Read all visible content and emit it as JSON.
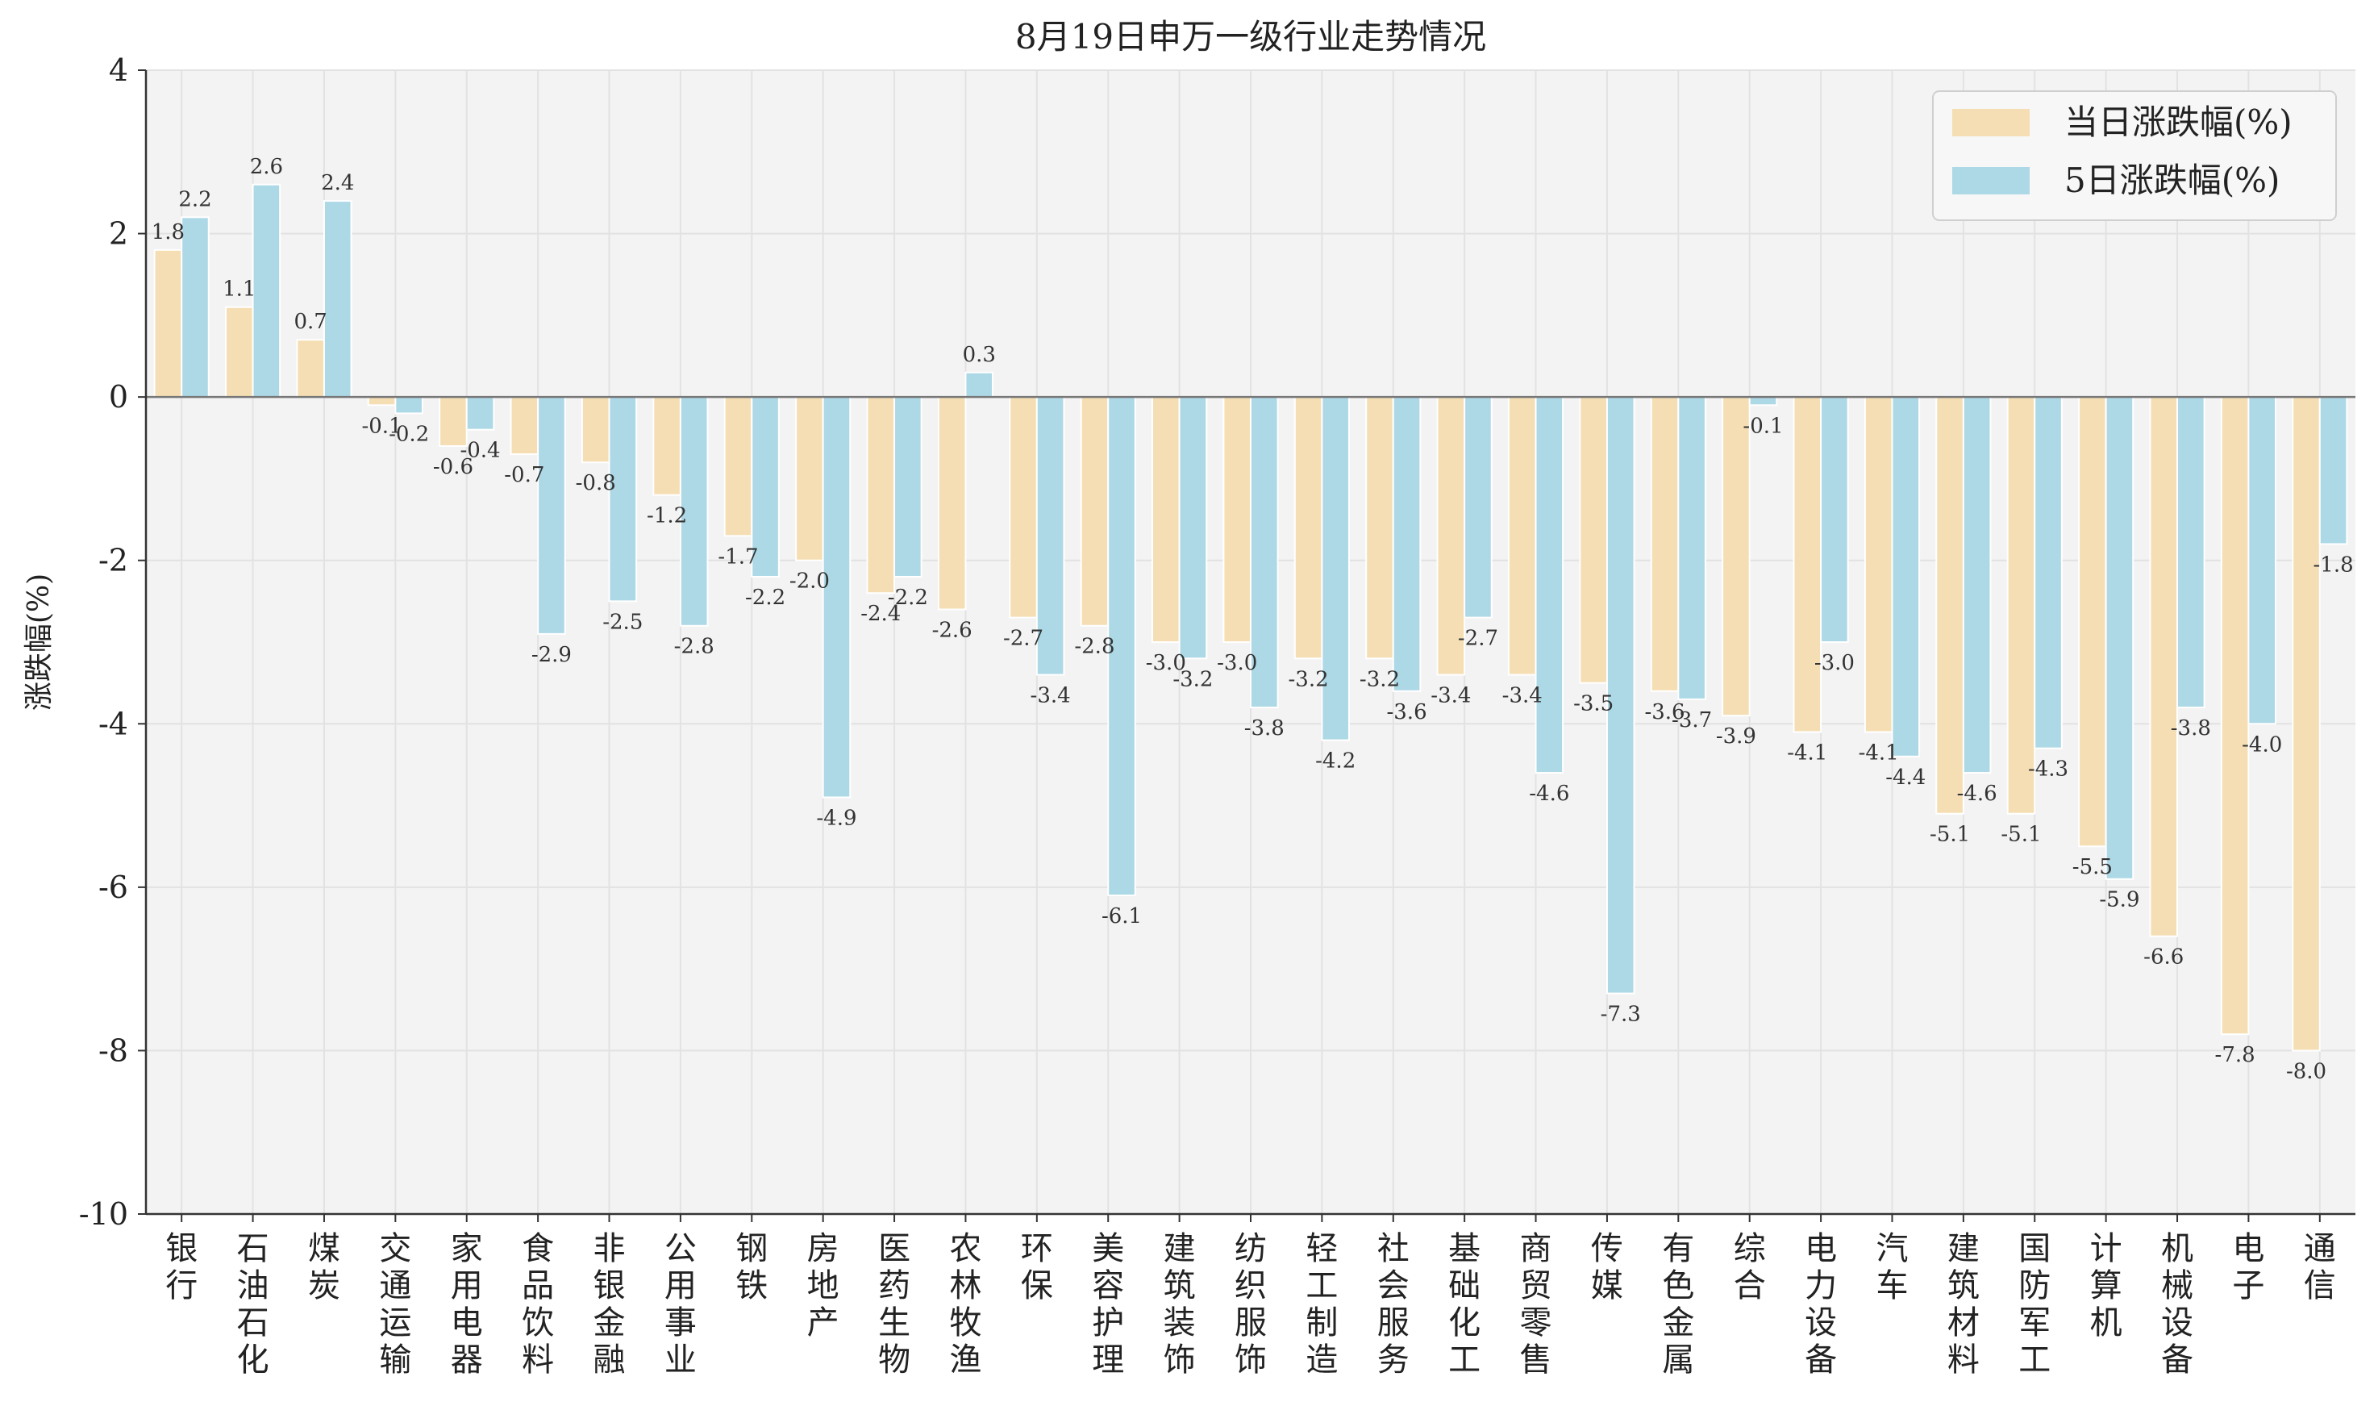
{
  "chart_data": {
    "type": "bar",
    "title": "8月19日申万一级行业走势情况",
    "ylabel": "涨跌幅(%)",
    "xlabel": "",
    "ylim": [
      -10,
      4
    ],
    "yticks": [
      4,
      2,
      0,
      -2,
      -4,
      -6,
      -8,
      -10
    ],
    "grid": true,
    "legend_position": "top-right",
    "categories": [
      "银行",
      "石油石化",
      "煤炭",
      "交通运输",
      "家用电器",
      "食品饮料",
      "非银金融",
      "公用事业",
      "钢铁",
      "房地产",
      "医药生物",
      "农林牧渔",
      "环保",
      "美容护理",
      "建筑装饰",
      "纺织服饰",
      "轻工制造",
      "社会服务",
      "基础化工",
      "商贸零售",
      "传媒",
      "有色金属",
      "综合",
      "电力设备",
      "汽车",
      "建筑材料",
      "国防军工",
      "计算机",
      "机械设备",
      "电子",
      "通信"
    ],
    "series": [
      {
        "name": "当日涨跌幅(%)",
        "color": "#f5deb3",
        "values": [
          1.8,
          1.1,
          0.7,
          -0.1,
          -0.6,
          -0.7,
          -0.8,
          -1.2,
          -1.7,
          -2.0,
          -2.4,
          -2.6,
          -2.7,
          -2.8,
          -3.0,
          -3.0,
          -3.2,
          -3.2,
          -3.4,
          -3.4,
          -3.5,
          -3.6,
          -3.9,
          -4.1,
          -4.1,
          -5.1,
          -5.1,
          -5.5,
          -6.6,
          -7.8,
          -8.0
        ]
      },
      {
        "name": "5日涨跌幅(%)",
        "color": "#add8e6",
        "values": [
          2.2,
          2.6,
          2.4,
          -0.2,
          -0.4,
          -2.9,
          -2.5,
          -2.8,
          -2.2,
          -4.9,
          -2.2,
          0.3,
          -3.4,
          -6.1,
          -3.2,
          -3.8,
          -4.2,
          -3.6,
          -2.7,
          -4.6,
          -7.3,
          -3.7,
          -0.1,
          -3.0,
          -4.4,
          -4.6,
          -4.3,
          -5.9,
          -3.8,
          -4.0,
          -1.8
        ]
      }
    ]
  },
  "colors": {
    "plot_background": "#f3f3f3",
    "grid": "#e2e2e2"
  }
}
